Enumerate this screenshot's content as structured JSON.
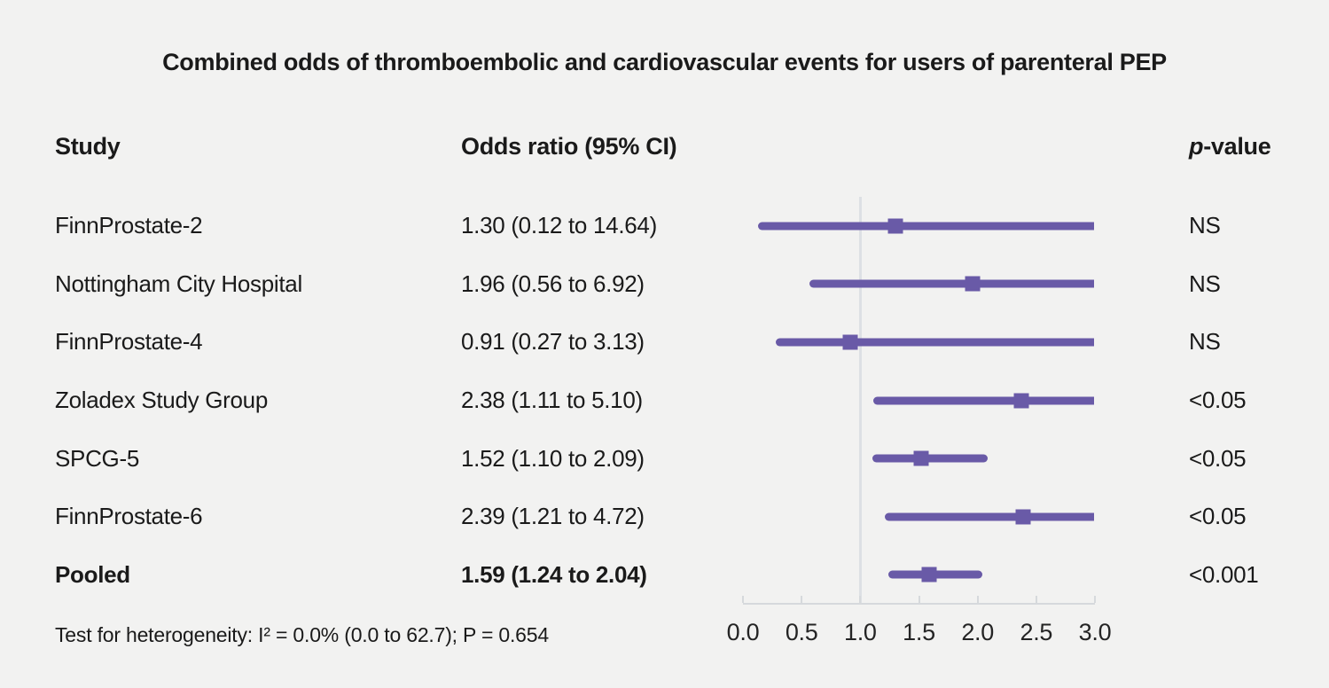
{
  "chart_data": {
    "type": "forest",
    "title": "Combined odds of thromboembolic and cardiovascular events for users of parenteral PEP",
    "columns": {
      "study": "Study",
      "odds_ratio": "Odds ratio (95% CI)",
      "p_prefix": "p",
      "p_suffix": "-value"
    },
    "x_axis": {
      "min": 0.0,
      "max": 3.0,
      "ticks": [
        0.0,
        0.5,
        1.0,
        1.5,
        2.0,
        2.5,
        3.0
      ],
      "tick_labels": [
        "0.0",
        "0.5",
        "1.0",
        "1.5",
        "2.0",
        "2.5",
        "3.0"
      ],
      "reference_line": 1.0
    },
    "studies": [
      {
        "name": "FinnProstate-2",
        "or": 1.3,
        "ci_low": 0.12,
        "ci_high": 14.64,
        "or_label": "1.30 (0.12 to 14.64)",
        "p": "NS",
        "emphasis": false
      },
      {
        "name": "Nottingham City Hospital",
        "or": 1.96,
        "ci_low": 0.56,
        "ci_high": 6.92,
        "or_label": "1.96 (0.56 to 6.92)",
        "p": "NS",
        "emphasis": false
      },
      {
        "name": "FinnProstate-4",
        "or": 0.91,
        "ci_low": 0.27,
        "ci_high": 3.13,
        "or_label": "0.91 (0.27 to 3.13)",
        "p": "NS",
        "emphasis": false
      },
      {
        "name": "Zoladex Study Group",
        "or": 2.38,
        "ci_low": 1.11,
        "ci_high": 5.1,
        "or_label": "2.38 (1.11 to 5.10)",
        "p": "<0.05",
        "emphasis": false
      },
      {
        "name": "SPCG-5",
        "or": 1.52,
        "ci_low": 1.1,
        "ci_high": 2.09,
        "or_label": "1.52 (1.10 to 2.09)",
        "p": "<0.05",
        "emphasis": false
      },
      {
        "name": "FinnProstate-6",
        "or": 2.39,
        "ci_low": 1.21,
        "ci_high": 4.72,
        "or_label": "2.39 (1.21 to 4.72)",
        "p": "<0.05",
        "emphasis": false
      },
      {
        "name": "Pooled",
        "or": 1.59,
        "ci_low": 1.24,
        "ci_high": 2.04,
        "or_label": "1.59 (1.24 to 2.04)",
        "p": "<0.001",
        "emphasis": true
      }
    ],
    "footnote": "Test for heterogeneity: I² = 0.0% (0.0 to 62.7); P = 0.654",
    "colors": {
      "marker": "#695aa7",
      "reference_line": "#dde0e4",
      "axis": "#d6d9dc",
      "background": "#f2f2f1",
      "text": "#1a1a1a"
    }
  }
}
